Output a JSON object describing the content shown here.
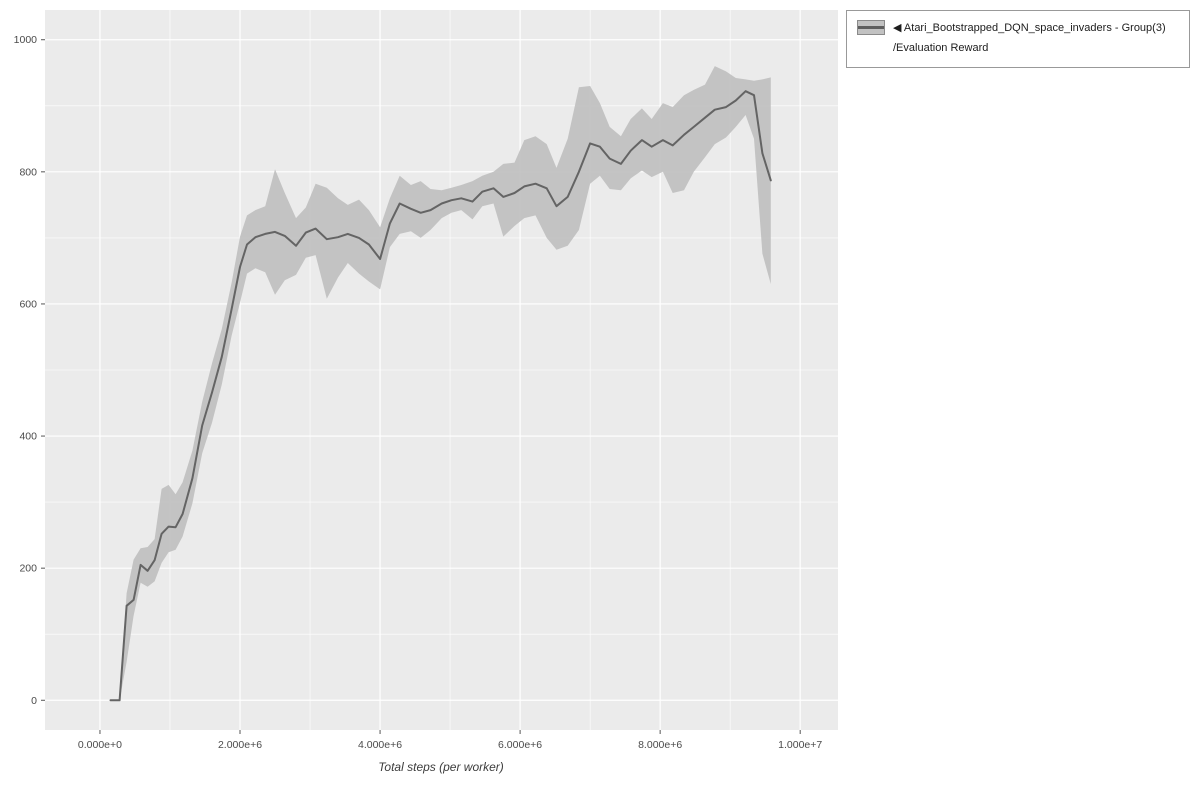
{
  "legend": {
    "marker": "◀",
    "series_label": "Atari_Bootstrapped_DQN_space_invaders - Group(3)",
    "metric_label": "/Evaluation Reward"
  },
  "colors": {
    "panel": "#ebebeb",
    "grid_major": "#ffffff",
    "grid_minor": "#ffffff",
    "band": "#bfbfbf",
    "line": "#646464",
    "tick": "#555555"
  },
  "chart_data": {
    "type": "line",
    "title": "",
    "xlabel": "Total steps (per worker)",
    "ylabel": "",
    "legend_position": "top-right-outside",
    "grid": true,
    "xlim": [
      -785000,
      10540000
    ],
    "ylim": [
      -45,
      1045
    ],
    "x_ticks": [
      {
        "value": 0,
        "label": "0.000e+0"
      },
      {
        "value": 2000000,
        "label": "2.000e+6"
      },
      {
        "value": 4000000,
        "label": "4.000e+6"
      },
      {
        "value": 6000000,
        "label": "6.000e+6"
      },
      {
        "value": 8000000,
        "label": "8.000e+6"
      },
      {
        "value": 10000000,
        "label": "1.000e+7"
      }
    ],
    "y_ticks": [
      {
        "value": 0,
        "label": "0"
      },
      {
        "value": 200,
        "label": "200"
      },
      {
        "value": 400,
        "label": "400"
      },
      {
        "value": 600,
        "label": "600"
      },
      {
        "value": 800,
        "label": "800"
      },
      {
        "value": 1000,
        "label": "1000"
      }
    ],
    "series": [
      {
        "name": "Atari_Bootstrapped_DQN_space_invaders - Group(3)/Evaluation Reward",
        "x": [
          150000,
          280000,
          380000,
          480000,
          580000,
          680000,
          780000,
          880000,
          980000,
          1080000,
          1180000,
          1320000,
          1460000,
          1600000,
          1740000,
          1880000,
          2000000,
          2100000,
          2220000,
          2360000,
          2500000,
          2640000,
          2800000,
          2940000,
          3080000,
          3240000,
          3400000,
          3540000,
          3700000,
          3840000,
          4000000,
          4140000,
          4280000,
          4440000,
          4580000,
          4720000,
          4880000,
          5020000,
          5160000,
          5320000,
          5460000,
          5620000,
          5760000,
          5920000,
          6060000,
          6220000,
          6380000,
          6520000,
          6680000,
          6840000,
          7000000,
          7140000,
          7280000,
          7440000,
          7580000,
          7740000,
          7880000,
          8040000,
          8180000,
          8340000,
          8480000,
          8640000,
          8780000,
          8940000,
          9080000,
          9220000,
          9340000,
          9460000,
          9580000
        ],
        "mean": [
          0,
          0,
          143,
          152,
          205,
          196,
          212,
          252,
          263,
          262,
          282,
          336,
          416,
          466,
          520,
          592,
          656,
          690,
          701,
          706,
          709,
          703,
          688,
          708,
          714,
          698,
          701,
          706,
          700,
          690,
          668,
          722,
          752,
          744,
          738,
          742,
          752,
          757,
          760,
          755,
          770,
          775,
          762,
          768,
          778,
          782,
          775,
          748,
          762,
          800,
          843,
          838,
          820,
          812,
          832,
          848,
          838,
          848,
          840,
          856,
          868,
          882,
          894,
          898,
          908,
          922,
          916,
          828,
          787
        ],
        "lower": [
          0,
          0,
          58,
          128,
          178,
          172,
          180,
          208,
          224,
          228,
          248,
          298,
          374,
          420,
          478,
          552,
          602,
          646,
          654,
          648,
          614,
          636,
          644,
          670,
          674,
          608,
          640,
          662,
          646,
          634,
          622,
          686,
          706,
          710,
          700,
          712,
          730,
          738,
          742,
          728,
          748,
          752,
          702,
          718,
          730,
          734,
          700,
          682,
          688,
          712,
          782,
          794,
          774,
          772,
          790,
          802,
          792,
          800,
          768,
          772,
          800,
          822,
          842,
          852,
          868,
          886,
          850,
          676,
          630
        ],
        "upper": [
          0,
          0,
          162,
          213,
          230,
          232,
          244,
          320,
          326,
          312,
          330,
          378,
          452,
          510,
          562,
          632,
          702,
          734,
          742,
          748,
          804,
          768,
          730,
          746,
          782,
          776,
          760,
          750,
          758,
          742,
          716,
          760,
          794,
          780,
          786,
          774,
          772,
          776,
          780,
          786,
          794,
          800,
          812,
          814,
          848,
          854,
          842,
          806,
          850,
          928,
          930,
          904,
          868,
          854,
          880,
          896,
          880,
          904,
          898,
          916,
          924,
          932,
          960,
          952,
          942,
          940,
          938,
          940,
          943
        ]
      }
    ]
  }
}
